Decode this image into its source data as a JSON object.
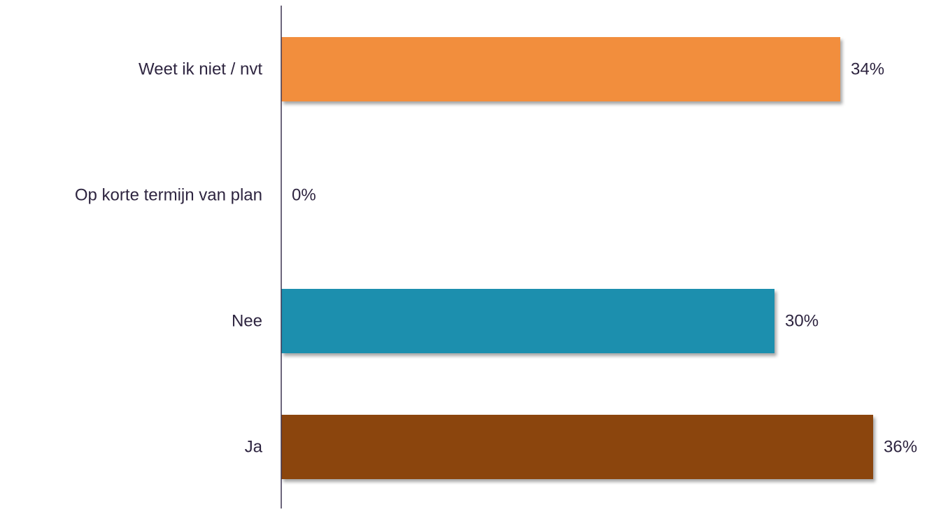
{
  "chart_data": {
    "type": "bar",
    "orientation": "horizontal",
    "title": "",
    "xlabel": "",
    "ylabel": "",
    "xlim": [
      0,
      36
    ],
    "grid": false,
    "categories": [
      "Weet ik niet / nvt",
      "Op korte termijn van plan",
      "Nee",
      "Ja"
    ],
    "values": [
      34,
      0,
      30,
      36
    ],
    "value_labels": [
      "34%",
      "0%",
      "30%",
      "36%"
    ],
    "colors": [
      "#f28e3c",
      "#f28e3c",
      "#1f8fae",
      "#8b4508"
    ],
    "text_color": "#2e2540",
    "axis_color": "#3d3450"
  }
}
